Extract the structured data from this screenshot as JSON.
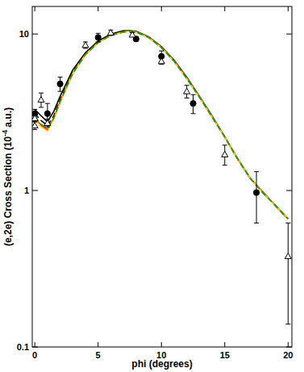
{
  "chart_data": {
    "type": "line",
    "xlabel": "phi (degrees)",
    "ylabel": [
      "(e,2e) Cross Section (10",
      "-4",
      " a.u.)"
    ],
    "xlim": [
      -0.2,
      20.3
    ],
    "ylim": [
      0.1,
      15
    ],
    "xticks": [
      0,
      5,
      10,
      15,
      20
    ],
    "yticks": [
      0.1,
      1,
      10
    ],
    "log": "y",
    "grid": false,
    "series": [
      {
        "type": "line",
        "color": "#000000",
        "line_style": "solid",
        "x": [
          0,
          0.5,
          1,
          1.5,
          2,
          3,
          4,
          5,
          6,
          7,
          7.5,
          8,
          9,
          10,
          11,
          12,
          13,
          14,
          15,
          16,
          17,
          18,
          19,
          20
        ],
        "values": [
          3.3,
          3.0,
          2.75,
          3.2,
          4.0,
          5.9,
          7.6,
          9.0,
          10.0,
          10.5,
          10.5,
          10.4,
          9.6,
          8.3,
          6.8,
          5.3,
          4.0,
          3.0,
          2.2,
          1.6,
          1.2,
          0.98,
          0.8,
          0.66
        ]
      },
      {
        "type": "line",
        "color": "#000000",
        "line_style": "dashed",
        "x": [
          0,
          0.5,
          1,
          1.5,
          2,
          3,
          4,
          5,
          6,
          7,
          7.5,
          8,
          9,
          10,
          11,
          12,
          13,
          14,
          15,
          16,
          17,
          18,
          19,
          20
        ],
        "values": [
          3.1,
          2.8,
          2.6,
          3.0,
          3.8,
          5.7,
          7.5,
          8.9,
          9.9,
          10.4,
          10.4,
          10.3,
          9.5,
          8.2,
          6.7,
          5.2,
          3.95,
          2.95,
          2.2,
          1.6,
          1.2,
          0.97,
          0.8,
          0.66
        ]
      },
      {
        "type": "line",
        "color": "#ff0000",
        "line_style": "solid",
        "x": [
          0,
          0.5,
          1,
          1.5,
          2,
          3,
          4,
          5,
          6,
          7,
          7.5,
          8,
          9,
          10,
          11,
          12,
          13,
          14,
          15,
          16,
          17,
          18,
          19,
          20
        ],
        "values": [
          2.9,
          2.6,
          2.45,
          2.9,
          3.7,
          5.6,
          7.4,
          8.8,
          9.8,
          10.3,
          10.4,
          10.3,
          9.5,
          8.2,
          6.7,
          5.2,
          3.95,
          2.95,
          2.2,
          1.6,
          1.2,
          0.97,
          0.8,
          0.66
        ]
      },
      {
        "type": "line",
        "color": "#ffd800",
        "line_style": "solid",
        "x": [
          0,
          0.5,
          1,
          1.5,
          2,
          3,
          4,
          5,
          6,
          7,
          7.5,
          8,
          9,
          10,
          11,
          12,
          13,
          14,
          15,
          16,
          17,
          18,
          19,
          20
        ],
        "values": [
          2.85,
          2.55,
          2.4,
          2.85,
          3.65,
          5.6,
          7.4,
          8.8,
          9.8,
          10.3,
          10.4,
          10.3,
          9.5,
          8.2,
          6.7,
          5.2,
          3.95,
          2.95,
          2.2,
          1.6,
          1.2,
          0.97,
          0.8,
          0.66
        ]
      },
      {
        "type": "line",
        "color": "#1a9a1a",
        "line_style": "dashed",
        "x": [
          0,
          0.5,
          1,
          1.5,
          2,
          3,
          4,
          5,
          6,
          7,
          7.5,
          8,
          9,
          10,
          11,
          12,
          13,
          14,
          15,
          16,
          17,
          18,
          19,
          20
        ],
        "values": [
          2.95,
          2.65,
          2.5,
          2.9,
          3.7,
          5.6,
          7.4,
          8.8,
          9.8,
          10.3,
          10.4,
          10.3,
          9.5,
          8.2,
          6.7,
          5.2,
          3.95,
          2.95,
          2.2,
          1.6,
          1.2,
          0.97,
          0.8,
          0.66
        ]
      },
      {
        "type": "scatter",
        "color": "#000000",
        "marker": "circle",
        "x": [
          0,
          1,
          2,
          5,
          8,
          10,
          12.5,
          17.5
        ],
        "values": [
          3.1,
          3.1,
          4.8,
          9.5,
          9.3,
          7.2,
          3.6,
          0.97
        ],
        "errors": [
          0.2,
          0.5,
          0.5,
          0.6,
          0.3,
          0.6,
          0.5,
          0.35
        ]
      },
      {
        "type": "scatter",
        "color": "#000000",
        "marker": "triangle",
        "x": [
          0,
          0,
          0.5,
          1,
          4,
          6,
          7.7,
          10,
          12,
          15,
          20
        ],
        "values": [
          2.6,
          2.9,
          3.8,
          2.7,
          8.5,
          10.2,
          9.9,
          6.7,
          4.3,
          1.7,
          0.38
        ],
        "errors": [
          0.15,
          0.15,
          0.4,
          0.15,
          0.4,
          0.4,
          0.3,
          0.3,
          0.4,
          0.25,
          0.24
        ]
      }
    ]
  }
}
